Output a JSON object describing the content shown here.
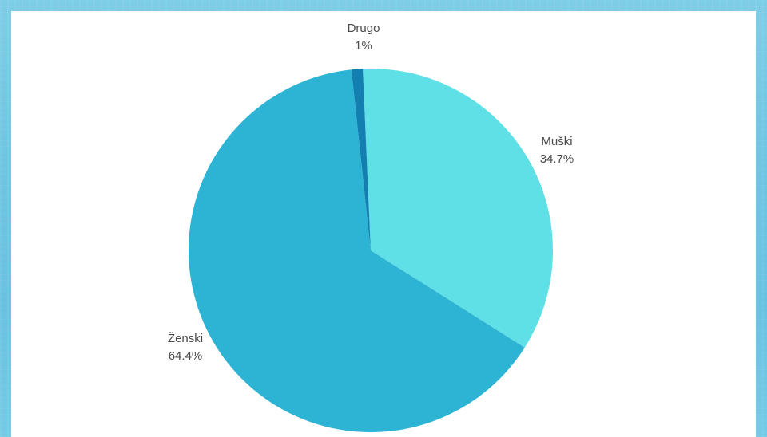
{
  "chart_data": {
    "type": "pie",
    "start_angle_deg": -2.5,
    "direction": "clockwise",
    "slices": [
      {
        "label": "Muški",
        "value": 34.7,
        "display": "34.7%",
        "color": "#5ee0e6"
      },
      {
        "label": "Ženski",
        "value": 64.4,
        "display": "64.4%",
        "color": "#2db4d4"
      },
      {
        "label": "Drugo",
        "value": 1,
        "display": "1%",
        "color": "#137eb0"
      }
    ]
  }
}
